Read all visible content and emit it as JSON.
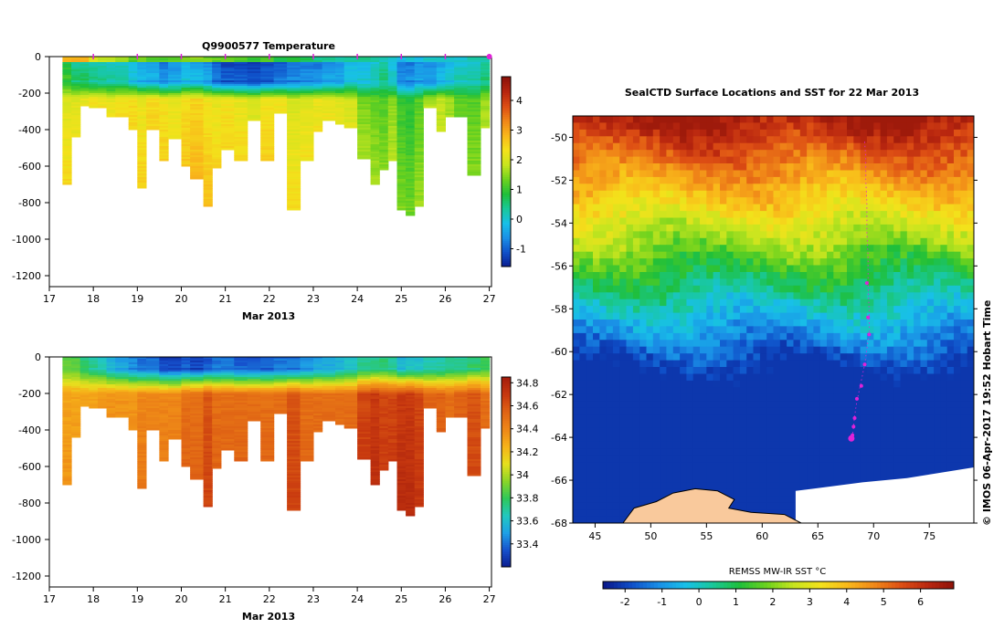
{
  "colors": {
    "temp_scale": [
      "#0a1a8c",
      "#0f4fc8",
      "#1a8fe6",
      "#18c0e8",
      "#19c89a",
      "#1fbf3a",
      "#6dd21e",
      "#c7e51f",
      "#f3e21b",
      "#f9b81a",
      "#f08718",
      "#dd4e14",
      "#b8260f",
      "#8c1209"
    ],
    "sal_scale": [
      "#0a1a8c",
      "#1650cc",
      "#1ea0e6",
      "#22c8c0",
      "#2ec85a",
      "#8ad528",
      "#e6e01e",
      "#f6b319",
      "#ee8717",
      "#e06414",
      "#c8390f",
      "#a51d0c"
    ],
    "land": "#f9c99c",
    "ice": "#ffffff",
    "marker": "#e022d8"
  },
  "chart_data": [
    {
      "type": "heatmap",
      "title": "Q9900577  Temperature",
      "xlabel": "Mar 2013",
      "xlim": [
        17,
        27.05
      ],
      "ylim": [
        -1260,
        0
      ],
      "xticks": [
        "17",
        "18",
        "19",
        "20",
        "21",
        "22",
        "23",
        "24",
        "25",
        "26",
        "27"
      ],
      "yticks": [
        "0",
        "-200",
        "-400",
        "-600",
        "-800",
        "-1000",
        "-1200"
      ],
      "colorbar": {
        "range": [
          -1.6,
          4.8
        ],
        "ticks": [
          "4",
          "3",
          "2",
          "1",
          "0",
          "-1"
        ]
      },
      "profile_x_start": [
        17.3,
        17.5,
        17.7,
        17.9,
        18.1,
        18.3,
        18.5,
        18.8,
        19.0,
        19.2,
        19.5,
        19.7,
        20.0,
        20.2,
        20.5,
        20.7,
        20.9,
        21.2,
        21.5,
        21.8,
        22.1,
        22.4,
        22.7,
        23.0,
        23.2,
        23.5,
        23.7,
        24.0,
        24.3,
        24.5,
        24.7,
        24.9,
        25.1,
        25.3,
        25.5,
        25.8,
        26.0,
        26.2,
        26.5,
        26.8
      ],
      "profile_max_depth": [
        700,
        440,
        270,
        280,
        280,
        330,
        330,
        400,
        720,
        400,
        570,
        450,
        600,
        670,
        820,
        610,
        510,
        570,
        350,
        570,
        310,
        840,
        570,
        410,
        350,
        370,
        390,
        560,
        700,
        620,
        570,
        840,
        870,
        820,
        280,
        410,
        330,
        330,
        650,
        390
      ],
      "profile_min_temp": [
        0.8,
        0.4,
        0.4,
        0.3,
        0.2,
        0.1,
        0.1,
        -0.2,
        -0.4,
        -0.5,
        -0.8,
        -0.6,
        -0.3,
        -0.4,
        -0.6,
        -1.0,
        -1.2,
        -1.2,
        -1.3,
        -1.2,
        -1.0,
        -0.9,
        -0.8,
        -0.8,
        -0.6,
        -0.6,
        -0.2,
        -0.2,
        0.0,
        0.3,
        -0.1,
        -0.8,
        -0.8,
        -0.6,
        -0.7,
        -0.4,
        -0.2,
        0.0,
        0.1,
        0.3
      ],
      "profile_deep_temp": [
        2.1,
        2.1,
        2.2,
        2.3,
        2.3,
        2.2,
        2.3,
        2.4,
        2.2,
        2.4,
        2.3,
        2.2,
        2.4,
        2.5,
        2.3,
        2.2,
        2.3,
        2.2,
        2.0,
        2.3,
        2.3,
        2.0,
        2.1,
        2.2,
        2.2,
        2.1,
        2.0,
        1.4,
        1.3,
        1.2,
        1.5,
        1.0,
        0.9,
        1.2,
        1.7,
        1.8,
        1.6,
        1.3,
        1.2,
        1.6
      ],
      "profile_surface_temp": [
        2.9,
        2.9,
        2.9,
        2.2,
        1.9,
        1.8,
        1.6,
        1.2,
        1.4,
        1.2,
        1.2,
        1.3,
        1.5,
        1.6,
        1.4,
        1.3,
        1.4,
        1.2,
        1.0,
        1.1,
        0.8,
        0.8,
        0.7,
        0.5,
        0.4,
        0.3,
        0.4,
        0.4,
        0.3,
        0.2,
        0.1,
        -0.2,
        0.0,
        -0.1,
        0.1,
        0.2,
        0.0,
        0.1,
        0.3,
        0.3
      ],
      "profile_markers_x": [
        18,
        19,
        20,
        21,
        22,
        23,
        24,
        25,
        26,
        27
      ]
    },
    {
      "type": "heatmap",
      "title": "",
      "xlabel": "Mar 2013",
      "xlim": [
        17,
        27.05
      ],
      "ylim": [
        -1260,
        0
      ],
      "xticks": [
        "17",
        "18",
        "19",
        "20",
        "21",
        "22",
        "23",
        "24",
        "25",
        "26",
        "27"
      ],
      "yticks": [
        "0",
        "-200",
        "-400",
        "-600",
        "-800",
        "-1000",
        "-1200"
      ],
      "colorbar": {
        "range": [
          33.2,
          34.85
        ],
        "ticks": [
          "34.8",
          "34.6",
          "34.4",
          "34.2",
          "34",
          "33.8",
          "33.6",
          "33.4"
        ]
      },
      "profile_surface_sal": [
        33.85,
        33.85,
        33.75,
        33.7,
        33.65,
        33.55,
        33.5,
        33.45,
        33.4,
        33.4,
        33.3,
        33.3,
        33.35,
        33.3,
        33.35,
        33.4,
        33.4,
        33.35,
        33.35,
        33.35,
        33.4,
        33.4,
        33.45,
        33.5,
        33.5,
        33.55,
        33.6,
        33.7,
        33.7,
        33.75,
        33.7,
        33.55,
        33.6,
        33.6,
        33.65,
        33.65,
        33.7,
        33.7,
        33.75,
        33.8
      ],
      "profile_deep_sal": [
        34.3,
        34.3,
        34.3,
        34.3,
        34.35,
        34.35,
        34.35,
        34.35,
        34.4,
        34.4,
        34.4,
        34.4,
        34.5,
        34.5,
        34.6,
        34.5,
        34.5,
        34.5,
        34.5,
        34.5,
        34.5,
        34.6,
        34.5,
        34.5,
        34.5,
        34.5,
        34.5,
        34.65,
        34.7,
        34.65,
        34.65,
        34.7,
        34.7,
        34.65,
        34.55,
        34.55,
        34.5,
        34.55,
        34.6,
        34.5
      ]
    },
    {
      "type": "heatmap",
      "title": "SealCTD Surface Locations and SST for 22 Mar 2013",
      "xlim": [
        43,
        79
      ],
      "ylim": [
        -68,
        -49
      ],
      "xticks": [
        "45",
        "50",
        "55",
        "60",
        "65",
        "70",
        "75"
      ],
      "yticks": [
        "-50",
        "-52",
        "-54",
        "-56",
        "-58",
        "-60",
        "-62",
        "-64",
        "-66",
        "-68"
      ],
      "colorbar": {
        "label": "REMSS MW-IR SST °C",
        "range": [
          -2.6,
          6.9
        ],
        "ticks": [
          "-2",
          "-1",
          "0",
          "1",
          "2",
          "3",
          "4",
          "5",
          "6"
        ]
      },
      "track": [
        [
          69.2,
          -50.2
        ],
        [
          69.3,
          -51.0
        ],
        [
          69.3,
          -52.0
        ],
        [
          69.4,
          -53.0
        ],
        [
          69.4,
          -54.5
        ],
        [
          69.5,
          -55.5
        ],
        [
          69.5,
          -56.8
        ],
        [
          69.6,
          -58.2
        ],
        [
          69.6,
          -59.1
        ],
        [
          69.2,
          -60.6
        ],
        [
          68.8,
          -61.6
        ],
        [
          68.5,
          -62.3
        ],
        [
          68.3,
          -63.0
        ],
        [
          68.2,
          -63.5
        ],
        [
          68.1,
          -64.0
        ]
      ],
      "track_points": [
        [
          69.4,
          -56.8
        ],
        [
          69.5,
          -58.4
        ],
        [
          69.6,
          -59.2
        ],
        [
          69.2,
          -60.6
        ],
        [
          68.9,
          -61.6
        ],
        [
          68.5,
          -62.2
        ],
        [
          68.3,
          -63.1
        ],
        [
          68.2,
          -63.5
        ],
        [
          68.1,
          -63.9
        ],
        [
          68.0,
          -64.05
        ]
      ],
      "credit": "©  IMOS 06-Apr-2017 19:52 Hobart Time"
    }
  ]
}
